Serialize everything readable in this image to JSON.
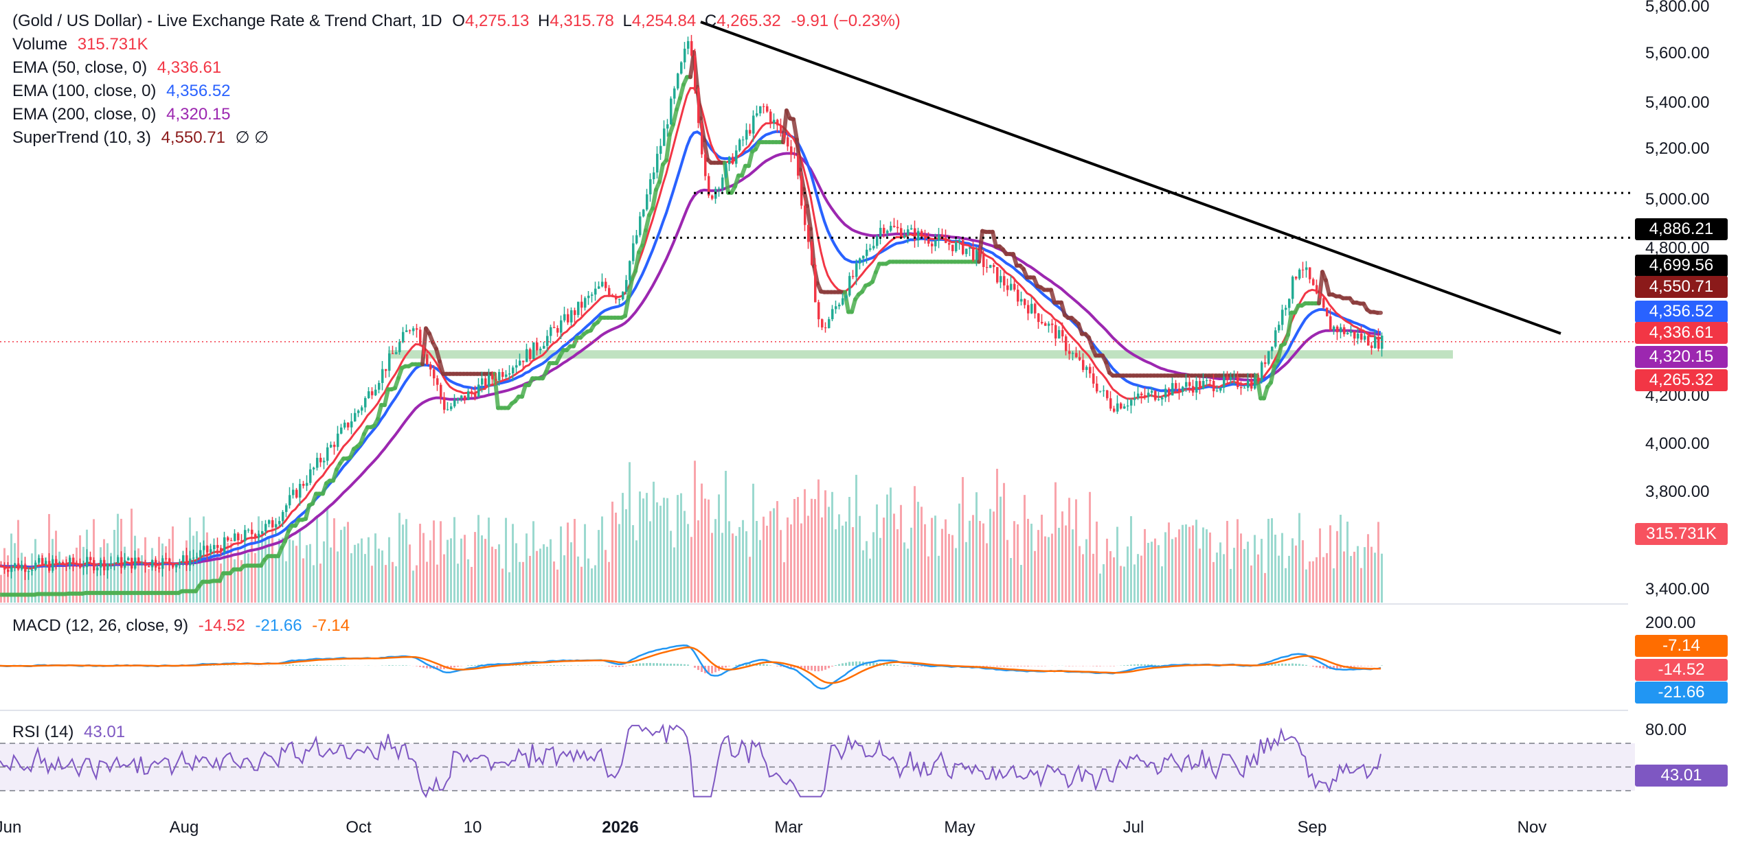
{
  "header": {
    "title": "(Gold / US Dollar) - Live Exchange Rate & Trend Chart, 1D",
    "o_label": "O",
    "o": "4,275.13",
    "h_label": "H",
    "h": "4,315.78",
    "l_label": "L",
    "l": "4,254.84",
    "c_label": "C",
    "c": "4,265.32",
    "change": "-9.91 (−0.23%)"
  },
  "indicators": {
    "volume": {
      "label": "Volume",
      "value": "315.731K"
    },
    "ema50": {
      "label": "EMA (50, close, 0)",
      "value": "4,336.61"
    },
    "ema100": {
      "label": "EMA (100, close, 0)",
      "value": "4,356.52"
    },
    "ema200": {
      "label": "EMA (200, close, 0)",
      "value": "4,320.15"
    },
    "supertrend": {
      "label": "SuperTrend (10, 3)",
      "value": "4,550.71",
      "extra": "∅ ∅"
    },
    "macd": {
      "label": "MACD (12, 26, close, 9)",
      "hist": "-14.52",
      "macd": "-21.66",
      "signal": "-7.14"
    },
    "rsi": {
      "label": "RSI (14)",
      "value": "43.01"
    }
  },
  "price_tags": [
    {
      "text": "4,886.21",
      "color": "#000000",
      "price": 4886.21
    },
    {
      "text": "4,699.56",
      "color": "#000000",
      "price": 4699.56
    },
    {
      "text": "4,550.71",
      "color": "#8b1a1a",
      "price": 4550.71
    },
    {
      "text": "4,356.52",
      "color": "#2962ff",
      "price": 4356.52
    },
    {
      "text": "4,336.61",
      "color": "#f23645",
      "price": 4336.61
    },
    {
      "text": "4,320.15",
      "color": "#9c27b0",
      "price": 4320.15
    },
    {
      "text": "4,265.32",
      "color": "#f23645",
      "price": 4265.32
    },
    {
      "text": "315.731K",
      "color": "#f7525f",
      "price": 3700
    }
  ],
  "macd_tags": [
    {
      "text": "-7.14",
      "color": "#ff6d00",
      "value": -7.14
    },
    {
      "text": "-14.52",
      "color": "#f7525f",
      "value": -14.52
    },
    {
      "text": "-21.66",
      "color": "#2196f3",
      "value": -21.66
    }
  ],
  "rsi_tags": [
    {
      "text": "43.01",
      "color": "#7e57c2",
      "value": 43.01
    }
  ],
  "y_ticks": [
    "5,800.00",
    "5,600.00",
    "5,400.00",
    "5,200.00",
    "5,000.00",
    "4,800.00",
    "4,200.00",
    "4,000.00",
    "3,800.00",
    "3,400.00"
  ],
  "macd_ticks": [
    "200.00"
  ],
  "rsi_ticks": [
    "80.00"
  ],
  "x_ticks": [
    {
      "label": "Jun",
      "major": false
    },
    {
      "label": "Aug",
      "major": false
    },
    {
      "label": "Oct",
      "major": false
    },
    {
      "label": "10",
      "major": false
    },
    {
      "label": "2026",
      "major": true
    },
    {
      "label": "Mar",
      "major": false
    },
    {
      "label": "May",
      "major": false
    },
    {
      "label": "Jul",
      "major": false
    },
    {
      "label": "Sep",
      "major": false
    },
    {
      "label": "Nov",
      "major": false
    }
  ],
  "colors": {
    "up": "#22ab94",
    "down": "#f23645",
    "ema50": "#f23645",
    "ema100": "#2962ff",
    "ema200": "#9c27b0",
    "supertrend_up": "#4caf50",
    "supertrend_down": "#8b3a3a",
    "zone": "#a5d6a7",
    "rsi": "#7e57c2",
    "macd": "#2196f3",
    "signal": "#ff6d00"
  },
  "chart_data": {
    "type": "candlestick",
    "symbol": "Gold / US Dollar",
    "interval": "1D",
    "ohlc_last": {
      "open": 4275.13,
      "high": 4315.78,
      "low": 4254.84,
      "close": 4265.32
    },
    "price_anchors": [
      {
        "date": "Jun",
        "price": 3330
      },
      {
        "date": "Aug",
        "price": 3350
      },
      {
        "date": "Sep",
        "price": 3500
      },
      {
        "date": "Oct",
        "price": 3980
      },
      {
        "date": "Oct 20",
        "price": 4350
      },
      {
        "date": "Nov 1",
        "price": 3980
      },
      {
        "date": "Dec 1",
        "price": 4230
      },
      {
        "date": "Dec 25",
        "price": 4500
      },
      {
        "date": "2026",
        "price": 4450
      },
      {
        "date": "Jan 25",
        "price": 5550
      },
      {
        "date": "Feb 1",
        "price": 4850
      },
      {
        "date": "Feb 20",
        "price": 5250
      },
      {
        "date": "Mar 1",
        "price": 5050
      },
      {
        "date": "Mar 10",
        "price": 4300
      },
      {
        "date": "Apr 1",
        "price": 4750
      },
      {
        "date": "May 1",
        "price": 4650
      },
      {
        "date": "Jun 1",
        "price": 4300
      },
      {
        "date": "Jun 20",
        "price": 4000
      },
      {
        "date": "Jul 15",
        "price": 4080
      },
      {
        "date": "Aug 10",
        "price": 4100
      },
      {
        "date": "Aug 25",
        "price": 4600
      },
      {
        "date": "Sep 5",
        "price": 4330
      },
      {
        "date": "Sep 20",
        "price": 4265
      }
    ],
    "y_range": [
      3330,
      5820
    ],
    "resistance_levels": [
      4886.21,
      4699.56
    ],
    "support_zone": [
      4195,
      4230
    ],
    "trendline": {
      "from": {
        "date": "Jan 25",
        "price": 5600
      },
      "to": {
        "date": "Oct 15",
        "price": 4300
      }
    },
    "macd_range": [
      -220,
      220
    ],
    "rsi_bands": [
      70,
      50,
      30
    ],
    "rsi_last": 43.01
  }
}
